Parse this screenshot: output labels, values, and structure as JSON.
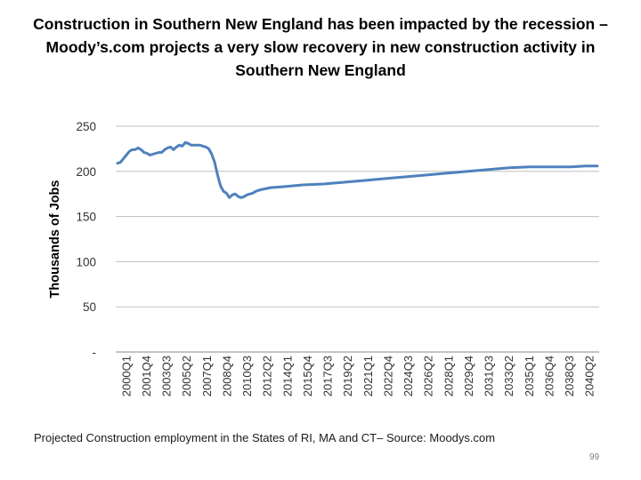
{
  "slide": {
    "title_lines": [
      "Construction in Southern New England has been impacted by the recession –",
      "Moody’s.com projects a very slow recovery in new construction activity in",
      "Southern New England"
    ],
    "caption": "Projected Construction employment in the States of RI, MA and CT– Source: Moodys.com",
    "page_number": "99"
  },
  "chart_data": {
    "type": "line",
    "ylabel": "Thousands of Jobs",
    "xlabel": "",
    "ylim": [
      0,
      250
    ],
    "yticks": [
      {
        "value": 0,
        "label": "-"
      },
      {
        "value": 50,
        "label": "50"
      },
      {
        "value": 100,
        "label": "100"
      },
      {
        "value": 150,
        "label": "150"
      },
      {
        "value": 200,
        "label": "200"
      },
      {
        "value": 250,
        "label": "250"
      }
    ],
    "xticks": [
      "2000Q1",
      "2001Q4",
      "2003Q3",
      "2005Q2",
      "2007Q1",
      "2008Q4",
      "2010Q3",
      "2012Q2",
      "2014Q1",
      "2015Q4",
      "2017Q3",
      "2019Q2",
      "2021Q1",
      "2022Q4",
      "2024Q3",
      "2026Q2",
      "2028Q1",
      "2029Q4",
      "2031Q3",
      "2033Q2",
      "2035Q1",
      "2036Q4",
      "2038Q3",
      "2040Q2"
    ],
    "grid": true,
    "legend": "none",
    "line_color": "#4f81bd",
    "series": [
      {
        "points": [
          {
            "x": "2000Q1",
            "y": 209
          },
          {
            "x": "2000Q2",
            "y": 210
          },
          {
            "x": "2000Q3",
            "y": 214
          },
          {
            "x": "2000Q4",
            "y": 218
          },
          {
            "x": "2001Q1",
            "y": 222
          },
          {
            "x": "2001Q2",
            "y": 224
          },
          {
            "x": "2001Q3",
            "y": 224
          },
          {
            "x": "2001Q4",
            "y": 226
          },
          {
            "x": "2002Q1",
            "y": 224
          },
          {
            "x": "2002Q2",
            "y": 221
          },
          {
            "x": "2002Q3",
            "y": 220
          },
          {
            "x": "2002Q4",
            "y": 218
          },
          {
            "x": "2003Q1",
            "y": 219
          },
          {
            "x": "2003Q2",
            "y": 220
          },
          {
            "x": "2003Q3",
            "y": 221
          },
          {
            "x": "2003Q4",
            "y": 221
          },
          {
            "x": "2004Q1",
            "y": 224
          },
          {
            "x": "2004Q2",
            "y": 226
          },
          {
            "x": "2004Q3",
            "y": 227
          },
          {
            "x": "2004Q4",
            "y": 224
          },
          {
            "x": "2005Q1",
            "y": 227
          },
          {
            "x": "2005Q2",
            "y": 229
          },
          {
            "x": "2005Q3",
            "y": 228
          },
          {
            "x": "2005Q4",
            "y": 232
          },
          {
            "x": "2006Q1",
            "y": 231
          },
          {
            "x": "2006Q2",
            "y": 229
          },
          {
            "x": "2006Q3",
            "y": 229
          },
          {
            "x": "2006Q4",
            "y": 229
          },
          {
            "x": "2007Q1",
            "y": 229
          },
          {
            "x": "2007Q2",
            "y": 228
          },
          {
            "x": "2007Q3",
            "y": 227
          },
          {
            "x": "2007Q4",
            "y": 225
          },
          {
            "x": "2008Q1",
            "y": 219
          },
          {
            "x": "2008Q2",
            "y": 210
          },
          {
            "x": "2008Q3",
            "y": 196
          },
          {
            "x": "2008Q4",
            "y": 184
          },
          {
            "x": "2009Q1",
            "y": 178
          },
          {
            "x": "2009Q2",
            "y": 176
          },
          {
            "x": "2009Q3",
            "y": 171
          },
          {
            "x": "2009Q4",
            "y": 174
          },
          {
            "x": "2010Q1",
            "y": 175
          },
          {
            "x": "2010Q2",
            "y": 172
          },
          {
            "x": "2010Q3",
            "y": 171
          },
          {
            "x": "2010Q4",
            "y": 172
          },
          {
            "x": "2011Q1",
            "y": 174
          },
          {
            "x": "2011Q2",
            "y": 175
          },
          {
            "x": "2011Q3",
            "y": 176
          },
          {
            "x": "2011Q4",
            "y": 178
          },
          {
            "x": "2012Q2",
            "y": 180
          },
          {
            "x": "2013Q1",
            "y": 182
          },
          {
            "x": "2014Q1",
            "y": 183
          },
          {
            "x": "2015Q4",
            "y": 185
          },
          {
            "x": "2017Q3",
            "y": 186
          },
          {
            "x": "2019Q2",
            "y": 188
          },
          {
            "x": "2021Q1",
            "y": 190
          },
          {
            "x": "2022Q4",
            "y": 192
          },
          {
            "x": "2024Q3",
            "y": 194
          },
          {
            "x": "2026Q2",
            "y": 196
          },
          {
            "x": "2028Q1",
            "y": 198
          },
          {
            "x": "2029Q4",
            "y": 200
          },
          {
            "x": "2031Q3",
            "y": 202
          },
          {
            "x": "2033Q2",
            "y": 204
          },
          {
            "x": "2035Q1",
            "y": 205
          },
          {
            "x": "2036Q4",
            "y": 205
          },
          {
            "x": "2038Q3",
            "y": 205
          },
          {
            "x": "2039Q4",
            "y": 206
          },
          {
            "x": "2040Q2",
            "y": 206
          },
          {
            "x": "2040Q4",
            "y": 206
          }
        ]
      }
    ]
  }
}
